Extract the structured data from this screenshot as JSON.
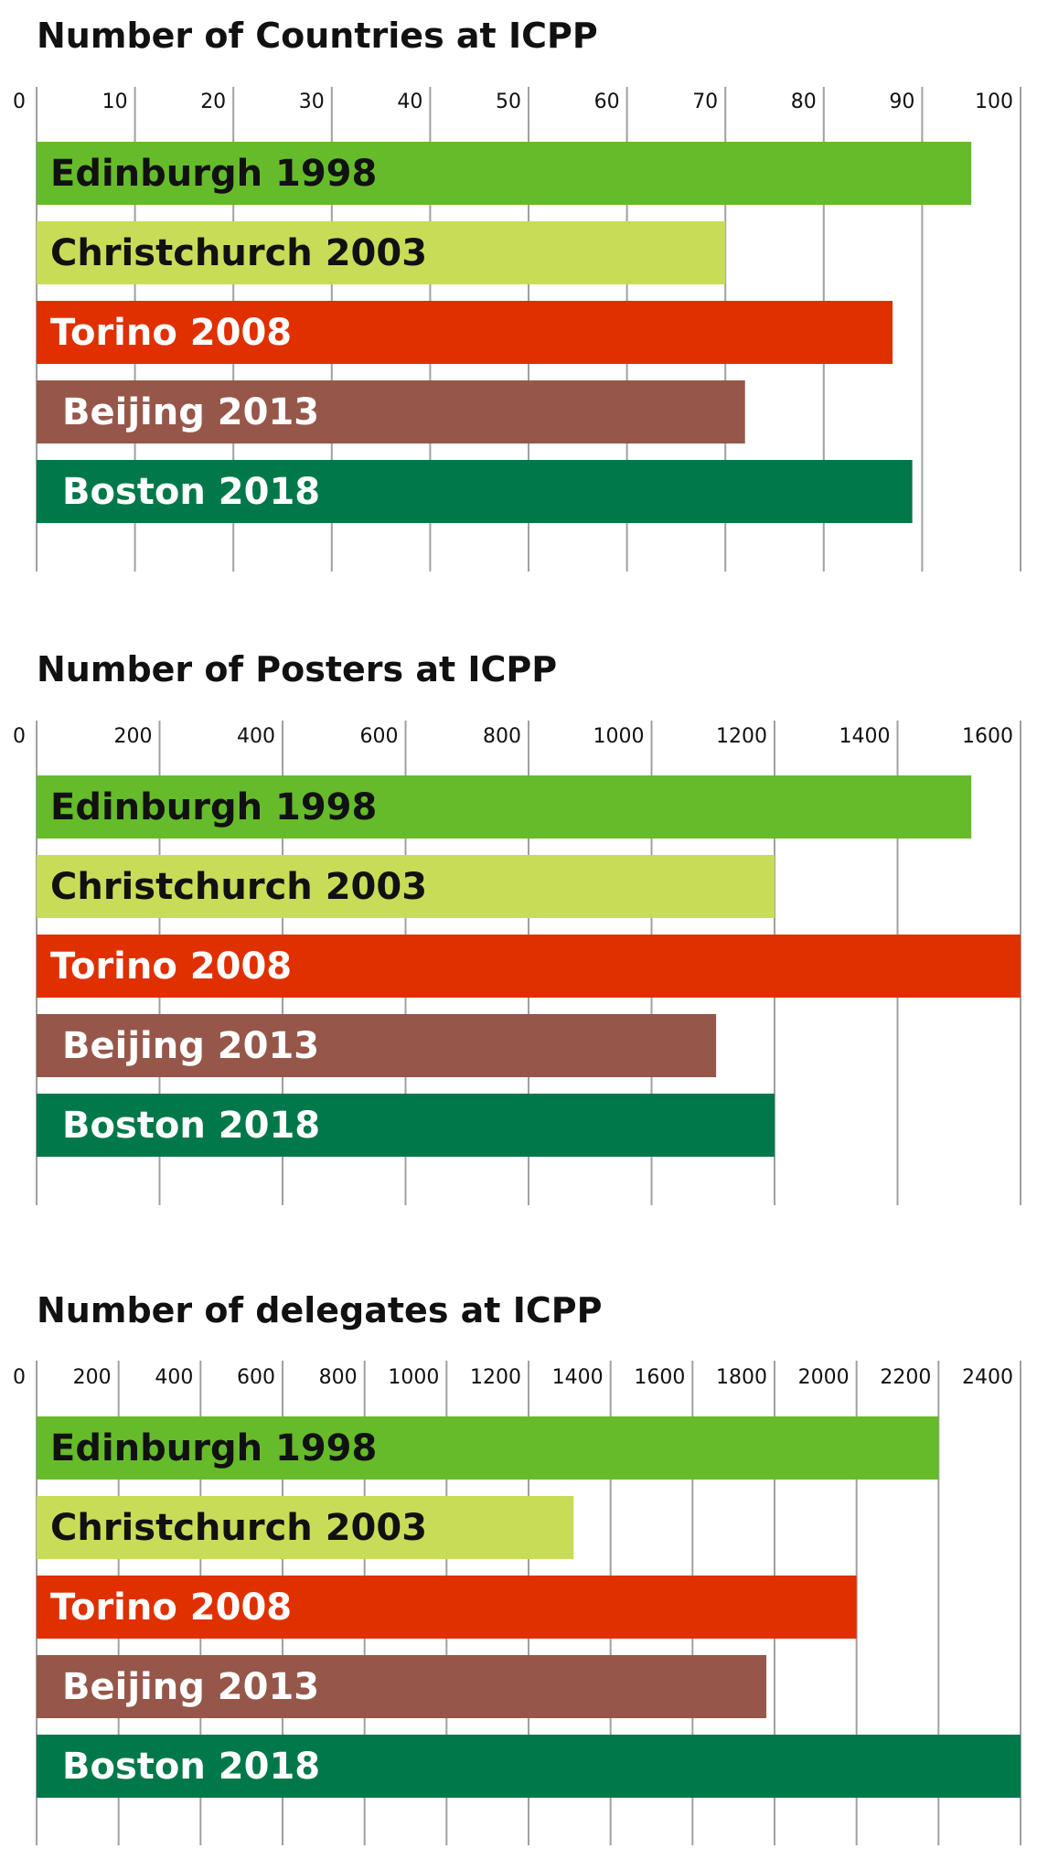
{
  "chart_data": [
    {
      "type": "bar",
      "orientation": "horizontal",
      "title": "Number of Countries at ICPP",
      "categories": [
        "Edinburgh 1998",
        "Christchurch 2003",
        "Torino 2008",
        "Beijing 2013",
        "Boston 2018"
      ],
      "values": [
        95,
        70,
        87,
        72,
        89
      ],
      "xlim": [
        0,
        100
      ],
      "ticks": [
        0,
        10,
        20,
        30,
        40,
        50,
        60,
        70,
        80,
        90,
        100
      ],
      "tick_labels": [
        "0",
        "10",
        "20",
        "30",
        "40",
        "50",
        "60",
        "70",
        "80",
        "90",
        "100"
      ],
      "grid": true,
      "axis_position": "top"
    },
    {
      "type": "bar",
      "orientation": "horizontal",
      "title": "Number of Posters at ICPP",
      "categories": [
        "Edinburgh 1998",
        "Christchurch 2003",
        "Torino 2008",
        "Beijing 2013",
        "Boston 2018"
      ],
      "values": [
        1520,
        1200,
        1600,
        1105,
        1200
      ],
      "xlim": [
        0,
        1600
      ],
      "ticks": [
        0,
        200,
        400,
        600,
        800,
        1000,
        1200,
        1400,
        1600
      ],
      "tick_labels": [
        "0",
        "200",
        "400",
        "600",
        "800",
        "1000",
        "1200",
        "1400",
        "1600"
      ],
      "grid": true,
      "axis_position": "top"
    },
    {
      "type": "bar",
      "orientation": "horizontal",
      "title": "Number of delegates at ICPP",
      "categories": [
        "Edinburgh 1998",
        "Christchurch 2003",
        "Torino 2008",
        "Beijing 2013",
        "Boston 2018"
      ],
      "values": [
        2200,
        1310,
        2000,
        1780,
        2400
      ],
      "xlim": [
        0,
        2400
      ],
      "ticks": [
        0,
        200,
        400,
        600,
        800,
        1000,
        1200,
        1400,
        1600,
        1800,
        2000,
        2200,
        2400
      ],
      "tick_labels": [
        "0",
        "200",
        "400",
        "600",
        "800",
        "1000",
        "1200",
        "1400",
        "1600",
        "1800",
        "2000",
        "2200",
        "2400"
      ],
      "grid": true,
      "axis_position": "top"
    }
  ],
  "colors": {
    "edinburgh": "#66bb2a",
    "christchurch": "#c9dc58",
    "torino": "#e03000",
    "beijing": "#96574a",
    "boston": "#00784a",
    "text_dark": "#111111",
    "text_light": "#ffffff"
  }
}
